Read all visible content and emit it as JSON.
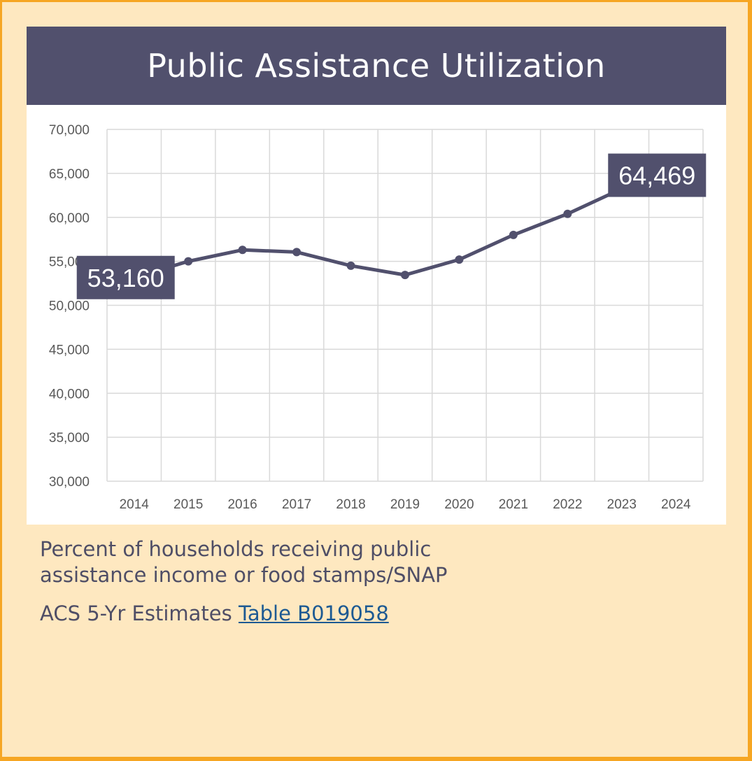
{
  "title": "Public Assistance Utilization",
  "caption": "Percent of households receiving public assistance income or food stamps/SNAP",
  "source": {
    "prefix": "ACS 5-Yr Estimates",
    "link_text": "Table B019058"
  },
  "colors": {
    "page_border": "#f6a623",
    "card_bg": "#fee8c0",
    "accent": "#51506d",
    "grid": "#d9d9d9",
    "link": "#1d5a93"
  },
  "chart_data": {
    "type": "line",
    "title": "Public Assistance Utilization",
    "xlabel": "",
    "ylabel": "",
    "categories": [
      "2014",
      "2015",
      "2016",
      "2017",
      "2018",
      "2019",
      "2020",
      "2021",
      "2022",
      "2023",
      "2024"
    ],
    "series": [
      {
        "name": "Public Assistance Utilization",
        "values": [
          53160,
          55000,
          56300,
          56050,
          54500,
          53450,
          55200,
          58000,
          60400,
          63250,
          64469
        ]
      }
    ],
    "ylim": [
      30000,
      70000
    ],
    "yticks": [
      30000,
      35000,
      40000,
      45000,
      50000,
      55000,
      60000,
      65000,
      70000
    ],
    "ytick_labels": [
      "30,000",
      "35,000",
      "40,000",
      "45,000",
      "50,000",
      "55,000",
      "60,000",
      "65,000",
      "70,000"
    ],
    "grid": true,
    "data_labels": [
      {
        "index": 0,
        "text": "53,160"
      },
      {
        "index": 10,
        "text": "64,469"
      }
    ]
  }
}
